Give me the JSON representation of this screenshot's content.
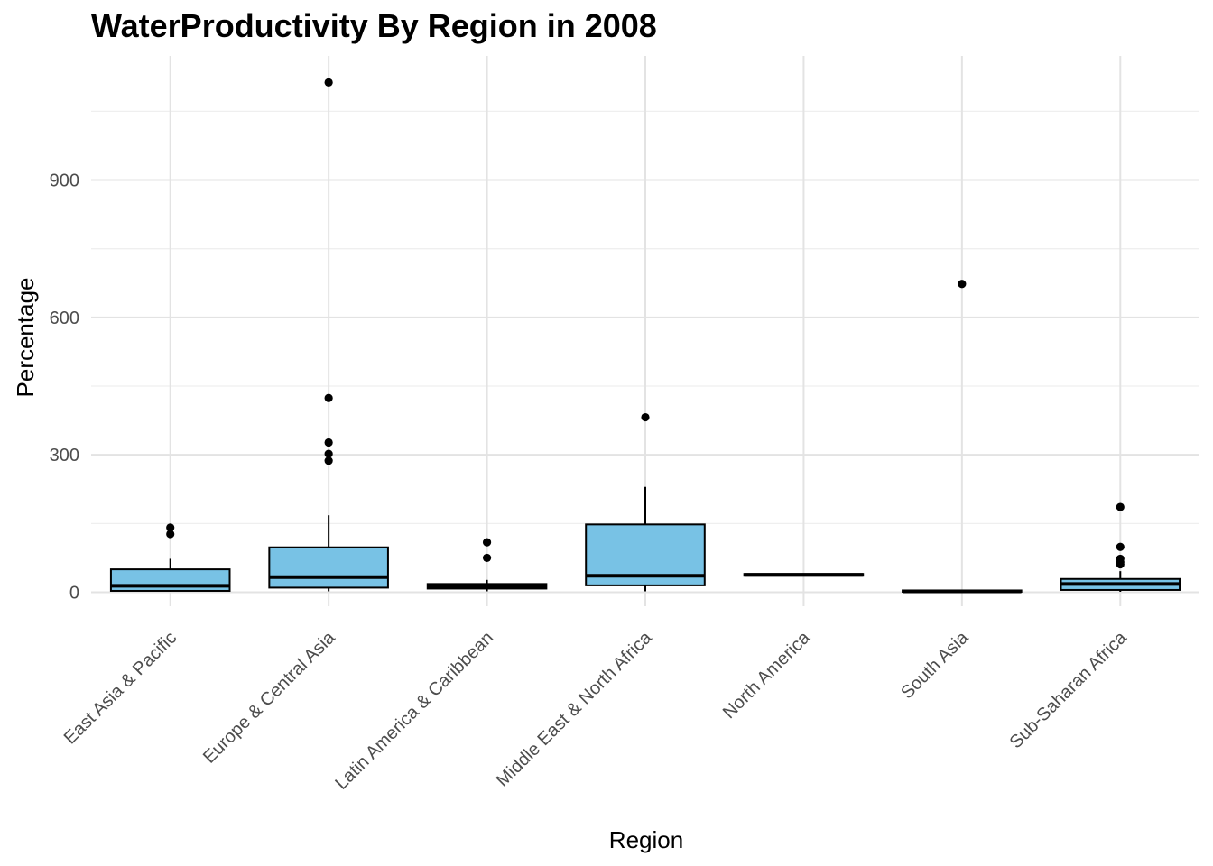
{
  "chart_data": {
    "type": "boxplot",
    "title": "WaterProductivity By Region in 2008",
    "xlabel": "Region",
    "ylabel": "Percentage",
    "ylim": [
      -50,
      1180
    ],
    "yticks": [
      0,
      300,
      600,
      900
    ],
    "grid": true,
    "fill_color": "#78c2e5",
    "stroke_color": "#000000",
    "categories": [
      "East Asia & Pacific",
      "Europe & Central Asia",
      "Latin America & Caribbean",
      "Middle East & North Africa",
      "North America",
      "South Asia",
      "Sub-Saharan Africa"
    ],
    "boxes": [
      {
        "category": "East Asia & Pacific",
        "whisker_low": 1,
        "q1": 3,
        "median": 14,
        "q3": 50,
        "whisker_high": 73,
        "outliers": [
          127,
          141
        ]
      },
      {
        "category": "Europe & Central Asia",
        "whisker_low": 2,
        "q1": 10,
        "median": 33,
        "q3": 98,
        "whisker_high": 168,
        "outliers": [
          287,
          302,
          327,
          424,
          1113
        ]
      },
      {
        "category": "Latin America & Caribbean",
        "whisker_low": 2,
        "q1": 8,
        "median": 12,
        "q3": 18,
        "whisker_high": 27,
        "outliers": [
          75,
          109
        ]
      },
      {
        "category": "Middle East & North Africa",
        "whisker_low": 2,
        "q1": 15,
        "median": 36,
        "q3": 148,
        "whisker_high": 230,
        "outliers": [
          382
        ]
      },
      {
        "category": "North America",
        "whisker_low": 36,
        "q1": 36,
        "median": 38,
        "q3": 40,
        "whisker_high": 40,
        "outliers": []
      },
      {
        "category": "South Asia",
        "whisker_low": 1,
        "q1": 1,
        "median": 2,
        "q3": 4,
        "whisker_high": 5,
        "outliers": [
          673
        ]
      },
      {
        "category": "Sub-Saharan Africa",
        "whisker_low": 1,
        "q1": 5,
        "median": 18,
        "q3": 29,
        "whisker_high": 46,
        "outliers": [
          61,
          66,
          73,
          99,
          186
        ]
      }
    ]
  }
}
